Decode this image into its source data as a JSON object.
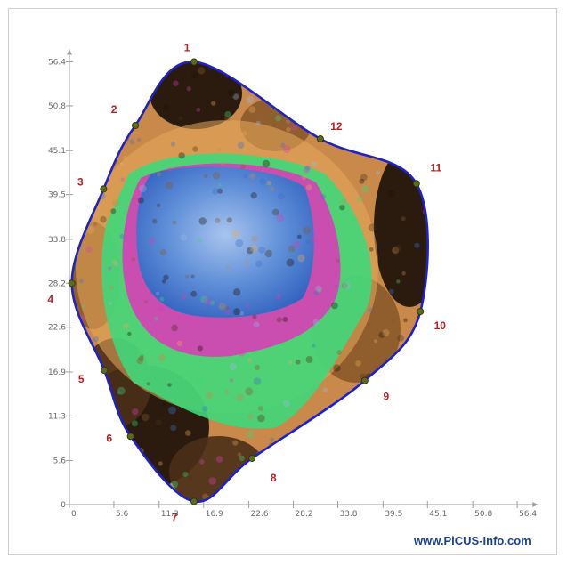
{
  "chart_data": {
    "type": "scatter",
    "title": "",
    "xlabel": "",
    "ylabel": "",
    "xlim": [
      0,
      59
    ],
    "ylim": [
      0,
      58
    ],
    "x_ticks": [
      "0",
      "5.6",
      "11.3",
      "16.9",
      "22.6",
      "28.2",
      "33.8",
      "39.5",
      "45.1",
      "50.8",
      "56.4"
    ],
    "y_ticks": [
      "0",
      "5.6",
      "11.3",
      "16.9",
      "22.6",
      "28.2",
      "33.8",
      "39.5",
      "45.1",
      "50.8",
      "56.4"
    ],
    "measuring_points": [
      {
        "label": "1",
        "x": 15.7,
        "y": 56.4
      },
      {
        "label": "2",
        "x": 8.3,
        "y": 48.3
      },
      {
        "label": "3",
        "x": 4.3,
        "y": 40.2
      },
      {
        "label": "4",
        "x": 0.3,
        "y": 28.2
      },
      {
        "label": "5",
        "x": 4.4,
        "y": 17.1
      },
      {
        "label": "6",
        "x": 7.7,
        "y": 8.7
      },
      {
        "label": "7",
        "x": 15.7,
        "y": 0.4
      },
      {
        "label": "8",
        "x": 23.0,
        "y": 5.9
      },
      {
        "label": "9",
        "x": 37.2,
        "y": 15.8
      },
      {
        "label": "10",
        "x": 44.2,
        "y": 24.6
      },
      {
        "label": "11",
        "x": 43.7,
        "y": 40.9
      },
      {
        "label": "12",
        "x": 31.6,
        "y": 46.6
      }
    ],
    "color_scale": [
      "#1a1008",
      "#4a3018",
      "#8a5a2a",
      "#c8894a",
      "#e8a95c",
      "#3fd77a",
      "#d63fb6",
      "#3f6fc8",
      "#9ab8e6"
    ],
    "outline_color": "#1f22c8"
  },
  "credit": "www.PiCUS-Info.com"
}
